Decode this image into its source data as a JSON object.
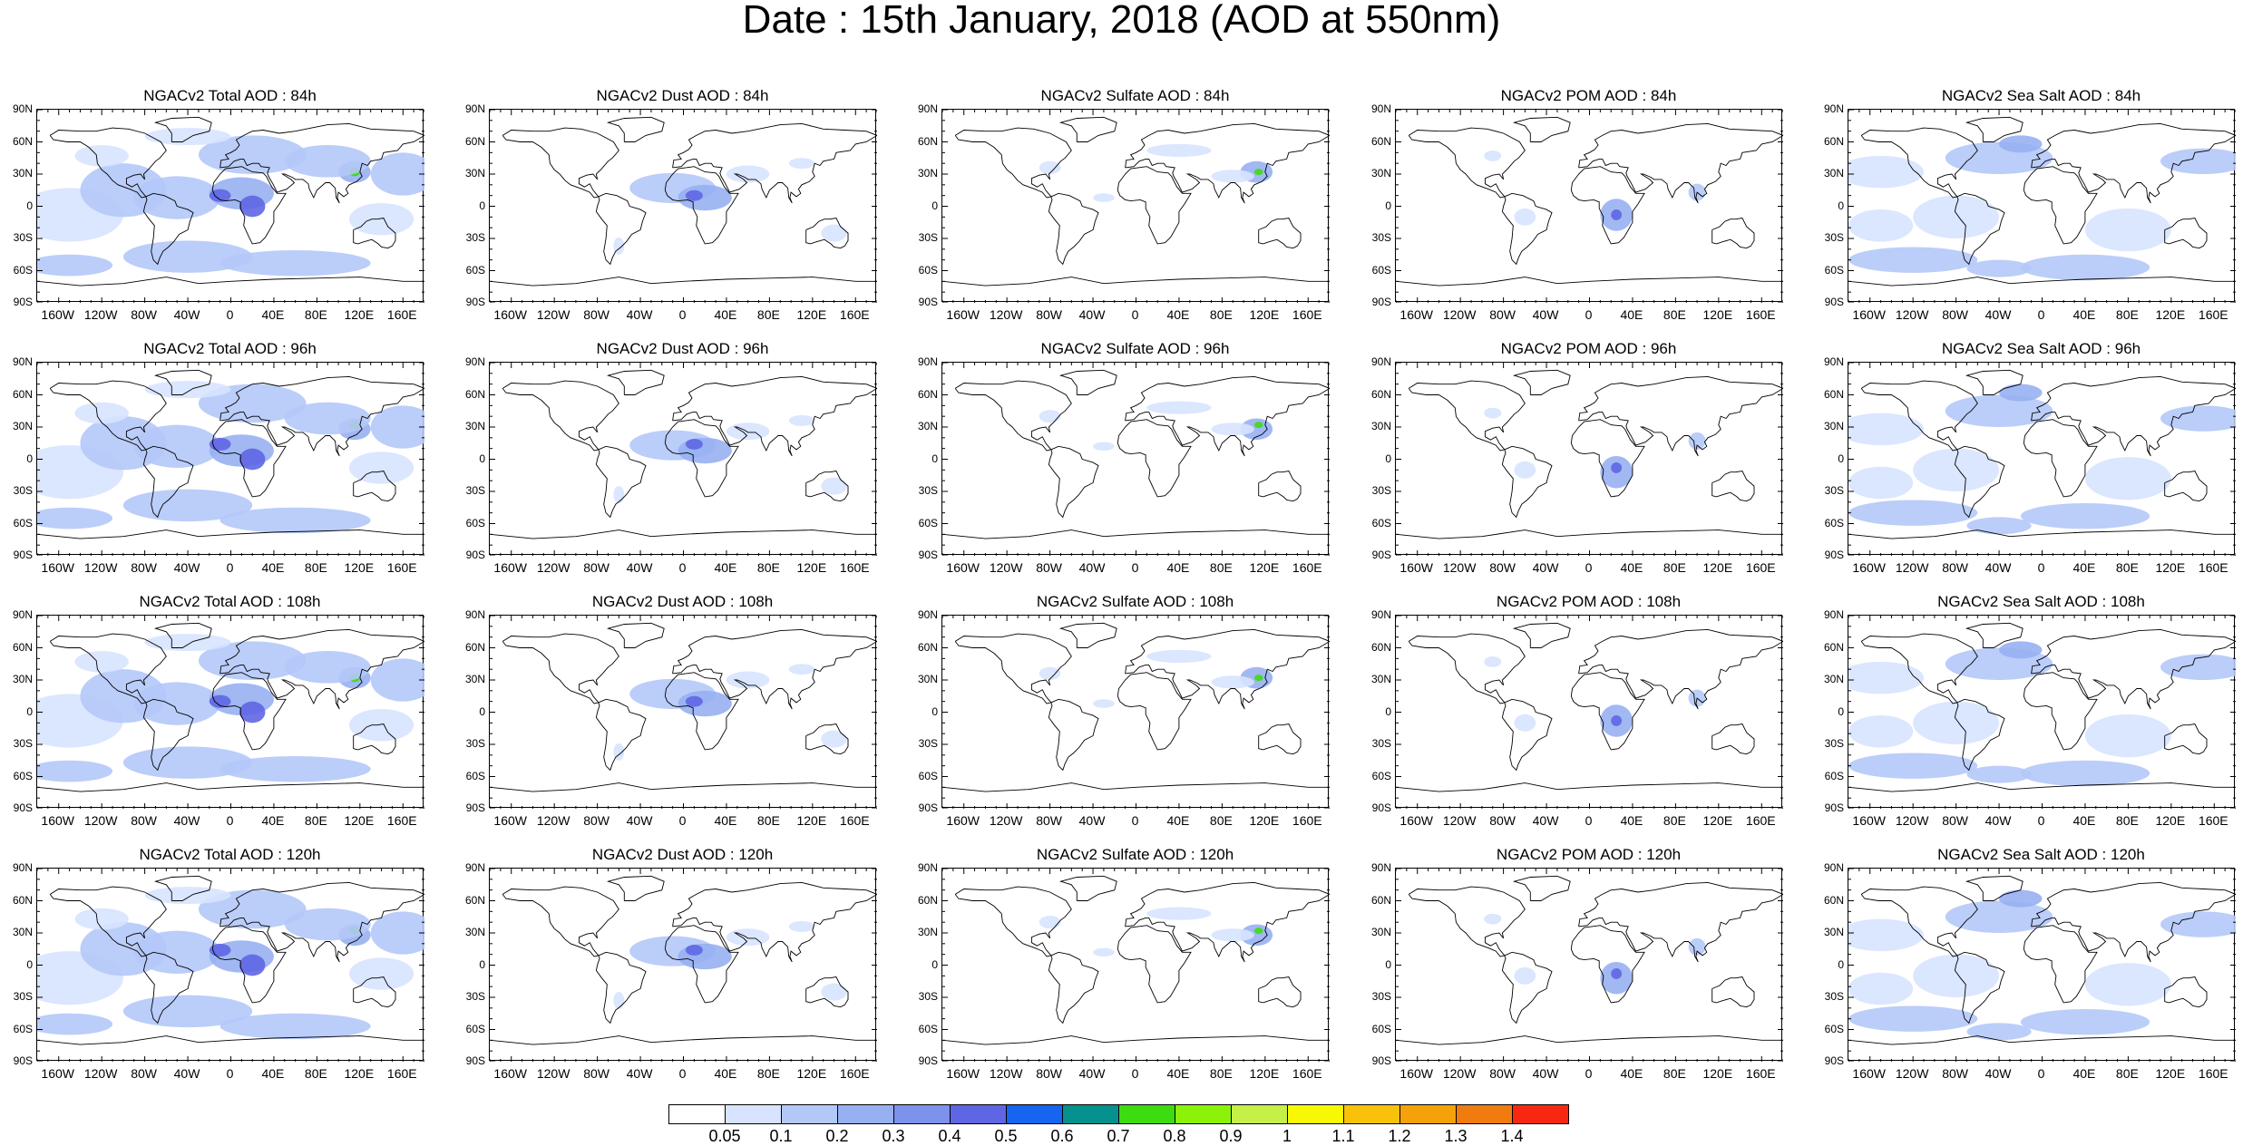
{
  "title": "Date : 15th January, 2018 (AOD at 550nm)",
  "panel_titles": [
    [
      "NGACv2 Total AOD : 84h",
      "NGACv2 Dust AOD : 84h",
      "NGACv2 Sulfate AOD : 84h",
      "NGACv2 POM AOD : 84h",
      "NGACv2 Sea Salt AOD : 84h"
    ],
    [
      "NGACv2 Total AOD : 96h",
      "NGACv2 Dust AOD : 96h",
      "NGACv2 Sulfate AOD : 96h",
      "NGACv2 POM AOD : 96h",
      "NGACv2 Sea Salt AOD : 96h"
    ],
    [
      "NGACv2 Total AOD : 108h",
      "NGACv2 Dust AOD : 108h",
      "NGACv2 Sulfate AOD : 108h",
      "NGACv2 POM AOD : 108h",
      "NGACv2 Sea Salt AOD : 108h"
    ],
    [
      "NGACv2 Total AOD : 120h",
      "NGACv2 Dust AOD : 120h",
      "NGACv2 Sulfate AOD : 120h",
      "NGACv2 POM AOD : 120h",
      "NGACv2 Sea Salt  AOD : 120h"
    ]
  ],
  "lat_labels": [
    "90N",
    "60N",
    "30N",
    "0",
    "30S",
    "60S",
    "90S"
  ],
  "lon_labels": [
    "160W",
    "120W",
    "80W",
    "40W",
    "0",
    "40E",
    "80E",
    "120E",
    "160E"
  ],
  "colorbar": {
    "labels": [
      "0.05",
      "0.1",
      "0.2",
      "0.3",
      "0.4",
      "0.5",
      "0.6",
      "0.7",
      "0.8",
      "0.9",
      "1",
      "1.1",
      "1.2",
      "1.3",
      "1.4"
    ],
    "colors": [
      "#ffffff",
      "#d7e3ff",
      "#b4c8f8",
      "#97b0f2",
      "#7d92ea",
      "#5f66e4",
      "#1565ee",
      "#05928e",
      "#3ddc10",
      "#8df20a",
      "#c5f048",
      "#f8f805",
      "#f8c20a",
      "#f5a20a",
      "#f07c10",
      "#f82810"
    ]
  },
  "colors": {
    "land_outline": "#000000",
    "aerosol_light": "#d7e3ff",
    "aerosol_mid": "#97b0f2",
    "aerosol_high": "#5f66e4"
  }
}
